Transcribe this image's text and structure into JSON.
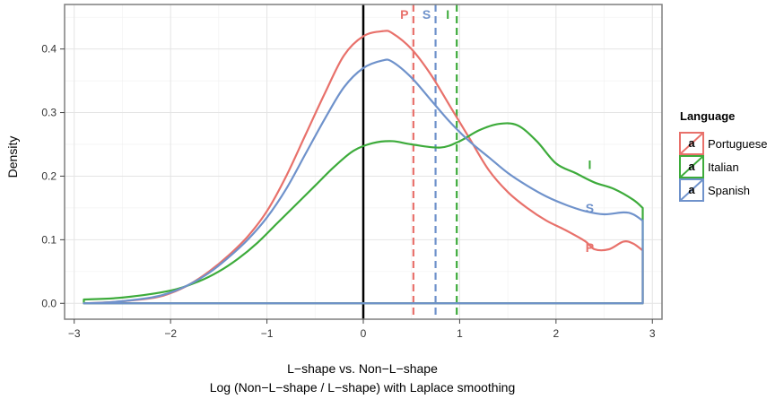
{
  "chart_data": {
    "type": "line",
    "xlabel_line1": "L−shape vs. Non−L−shape",
    "xlabel_line2": "Log (Non−L−shape / L−shape) with Laplace smoothing",
    "ylabel": "Density",
    "xlim": [
      -3.1,
      3.1
    ],
    "ylim": [
      -0.025,
      0.47
    ],
    "x_ticks": [
      -3,
      -2,
      -1,
      0,
      1,
      2,
      3
    ],
    "x_tick_labels": [
      "−3",
      "−2",
      "−1",
      "0",
      "1",
      "2",
      "3"
    ],
    "y_ticks": [
      0.0,
      0.1,
      0.2,
      0.3,
      0.4
    ],
    "y_tick_labels": [
      "0.0",
      "0.1",
      "0.2",
      "0.3",
      "0.4"
    ],
    "grid": true,
    "zero_vline": 0,
    "legend": {
      "title": "Language",
      "position": "right",
      "items": [
        {
          "glyph": "a",
          "label": "Portuguese",
          "color": "#E8716B"
        },
        {
          "glyph": "a",
          "label": "Italian",
          "color": "#3DAB3B"
        },
        {
          "glyph": "a",
          "label": "Spanish",
          "color": "#6F92CB"
        }
      ]
    },
    "series": [
      {
        "name": "Portuguese",
        "color": "#E8716B",
        "marker": "P",
        "marker_point": [
          2.35,
          0.088
        ],
        "mean_line": 0.52,
        "mean_label": "P",
        "x": [
          -2.9,
          -2.6,
          -2.2,
          -2.0,
          -1.8,
          -1.6,
          -1.4,
          -1.2,
          -1.0,
          -0.8,
          -0.6,
          -0.4,
          -0.2,
          0.0,
          0.2,
          0.3,
          0.5,
          0.7,
          0.9,
          1.1,
          1.3,
          1.5,
          1.7,
          1.9,
          2.1,
          2.3,
          2.4,
          2.55,
          2.7,
          2.8,
          2.9
        ],
        "y": [
          0.0,
          0.002,
          0.008,
          0.016,
          0.03,
          0.05,
          0.075,
          0.105,
          0.145,
          0.2,
          0.265,
          0.33,
          0.39,
          0.42,
          0.428,
          0.425,
          0.4,
          0.36,
          0.31,
          0.26,
          0.21,
          0.175,
          0.15,
          0.13,
          0.115,
          0.098,
          0.085,
          0.085,
          0.097,
          0.094,
          0.083
        ]
      },
      {
        "name": "Italian",
        "color": "#3DAB3B",
        "marker": "I",
        "marker_point": [
          2.35,
          0.218
        ],
        "mean_line": 0.97,
        "mean_label": "I",
        "x": [
          -2.9,
          -2.5,
          -2.0,
          -1.7,
          -1.5,
          -1.3,
          -1.1,
          -0.9,
          -0.7,
          -0.5,
          -0.3,
          -0.1,
          0.1,
          0.3,
          0.5,
          0.8,
          1.0,
          1.2,
          1.4,
          1.6,
          1.8,
          2.0,
          2.2,
          2.4,
          2.6,
          2.8,
          2.9
        ],
        "y": [
          0.006,
          0.009,
          0.02,
          0.035,
          0.05,
          0.07,
          0.095,
          0.125,
          0.155,
          0.185,
          0.215,
          0.24,
          0.252,
          0.255,
          0.25,
          0.245,
          0.255,
          0.272,
          0.282,
          0.28,
          0.255,
          0.22,
          0.205,
          0.19,
          0.18,
          0.163,
          0.15
        ]
      },
      {
        "name": "Spanish",
        "color": "#6F92CB",
        "marker": "S",
        "marker_point": [
          2.35,
          0.15
        ],
        "mean_line": 0.75,
        "mean_label": "S",
        "x": [
          -2.9,
          -2.6,
          -2.2,
          -2.0,
          -1.8,
          -1.6,
          -1.4,
          -1.2,
          -1.0,
          -0.8,
          -0.6,
          -0.4,
          -0.2,
          0.0,
          0.2,
          0.3,
          0.5,
          0.7,
          0.9,
          1.1,
          1.3,
          1.5,
          1.7,
          1.9,
          2.1,
          2.3,
          2.5,
          2.7,
          2.8,
          2.9
        ],
        "y": [
          0.0,
          0.002,
          0.009,
          0.017,
          0.03,
          0.048,
          0.072,
          0.1,
          0.135,
          0.18,
          0.235,
          0.29,
          0.34,
          0.37,
          0.382,
          0.38,
          0.355,
          0.32,
          0.285,
          0.255,
          0.23,
          0.205,
          0.185,
          0.168,
          0.155,
          0.145,
          0.14,
          0.143,
          0.14,
          0.13
        ]
      }
    ]
  }
}
